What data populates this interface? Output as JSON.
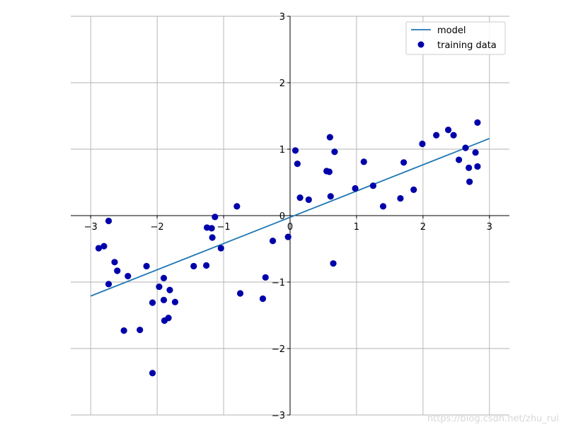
{
  "chart_data": {
    "type": "scatter",
    "xlim": [
      -3.3,
      3.3
    ],
    "ylim": [
      -3,
      3
    ],
    "xticks": [
      -3,
      -2,
      -1,
      0,
      1,
      2,
      3
    ],
    "yticks": [
      -3,
      -2,
      -1,
      0,
      1,
      2,
      3
    ],
    "xtick_labels": [
      "−3",
      "−2",
      "−1",
      "0",
      "1",
      "2",
      "3"
    ],
    "ytick_labels": [
      "−3",
      "−2",
      "−1",
      "0",
      "1",
      "2",
      "3"
    ],
    "grid": true,
    "spines": "centered",
    "legend_position": "top-right",
    "series": [
      {
        "name": "model",
        "kind": "line",
        "color": "#1f77b4",
        "x": [
          -3,
          3
        ],
        "y": [
          -1.21,
          1.16
        ]
      },
      {
        "name": "training data",
        "kind": "scatter",
        "color": "#0000aa",
        "points": [
          [
            -2.88,
            -0.49
          ],
          [
            -2.8,
            -0.46
          ],
          [
            -2.73,
            -0.08
          ],
          [
            -2.73,
            -1.03
          ],
          [
            -2.64,
            -0.7
          ],
          [
            -2.6,
            -0.83
          ],
          [
            -2.44,
            -0.91
          ],
          [
            -2.5,
            -1.73
          ],
          [
            -2.26,
            -1.72
          ],
          [
            -2.16,
            -0.76
          ],
          [
            -2.07,
            -1.31
          ],
          [
            -2.07,
            -2.37
          ],
          [
            -1.97,
            -1.07
          ],
          [
            -1.9,
            -0.94
          ],
          [
            -1.9,
            -1.27
          ],
          [
            -1.89,
            -1.58
          ],
          [
            -1.83,
            -1.54
          ],
          [
            -1.81,
            -1.12
          ],
          [
            -1.73,
            -1.3
          ],
          [
            -1.45,
            -0.76
          ],
          [
            -1.26,
            -0.75
          ],
          [
            -1.25,
            -0.18
          ],
          [
            -1.18,
            -0.19
          ],
          [
            -1.17,
            -0.33
          ],
          [
            -1.13,
            -0.02
          ],
          [
            -1.04,
            -0.49
          ],
          [
            -0.8,
            0.14
          ],
          [
            -0.75,
            -1.17
          ],
          [
            -0.41,
            -1.25
          ],
          [
            -0.37,
            -0.93
          ],
          [
            -0.26,
            -0.38
          ],
          [
            -0.03,
            -0.32
          ],
          [
            0.08,
            0.98
          ],
          [
            0.11,
            0.78
          ],
          [
            0.15,
            0.27
          ],
          [
            0.28,
            0.24
          ],
          [
            0.55,
            0.67
          ],
          [
            0.59,
            0.66
          ],
          [
            0.6,
            1.18
          ],
          [
            0.61,
            0.29
          ],
          [
            0.65,
            -0.72
          ],
          [
            0.67,
            0.96
          ],
          [
            0.98,
            0.41
          ],
          [
            1.11,
            0.81
          ],
          [
            1.25,
            0.45
          ],
          [
            1.4,
            0.14
          ],
          [
            1.66,
            0.26
          ],
          [
            1.71,
            0.8
          ],
          [
            1.86,
            0.39
          ],
          [
            1.99,
            1.08
          ],
          [
            2.2,
            1.21
          ],
          [
            2.38,
            1.29
          ],
          [
            2.46,
            1.21
          ],
          [
            2.54,
            0.84
          ],
          [
            2.64,
            1.02
          ],
          [
            2.69,
            0.72
          ],
          [
            2.7,
            0.51
          ],
          [
            2.79,
            0.95
          ],
          [
            2.82,
            0.74
          ],
          [
            2.82,
            1.4
          ]
        ]
      }
    ]
  },
  "watermark": "https://blog.csdn.net/zhu_rui"
}
